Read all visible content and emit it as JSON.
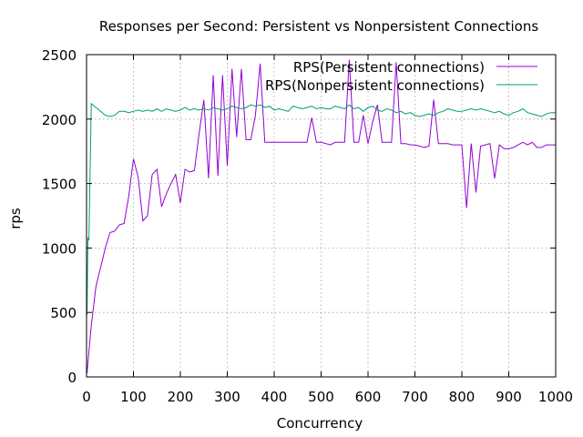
{
  "chart_data": {
    "type": "line",
    "title": "Responses per Second: Persistent vs Nonpersistent Connections",
    "xlabel": "Concurrency",
    "ylabel": "rps",
    "xlim": [
      0,
      1000
    ],
    "ylim": [
      0,
      2500
    ],
    "xticks": [
      0,
      100,
      200,
      300,
      400,
      500,
      600,
      700,
      800,
      900,
      1000
    ],
    "yticks": [
      0,
      500,
      1000,
      1500,
      2000,
      2500
    ],
    "grid": true,
    "legend_position": "top-right",
    "series": [
      {
        "name": "RPS(Persistent connections)",
        "color": "#9400d3",
        "x": [
          1,
          10,
          20,
          30,
          40,
          50,
          60,
          70,
          80,
          90,
          100,
          110,
          120,
          130,
          140,
          150,
          160,
          170,
          180,
          190,
          200,
          210,
          220,
          230,
          240,
          250,
          260,
          270,
          280,
          290,
          300,
          310,
          320,
          330,
          340,
          350,
          360,
          370,
          380,
          390,
          400,
          410,
          420,
          430,
          440,
          450,
          460,
          470,
          480,
          490,
          500,
          510,
          520,
          530,
          540,
          550,
          560,
          570,
          580,
          590,
          600,
          610,
          620,
          630,
          640,
          650,
          660,
          670,
          680,
          690,
          700,
          710,
          720,
          730,
          740,
          750,
          760,
          770,
          780,
          790,
          800,
          810,
          820,
          830,
          840,
          850,
          860,
          870,
          880,
          890,
          900,
          910,
          920,
          930,
          940,
          950,
          960,
          970,
          980,
          990,
          1000
        ],
        "y": [
          30,
          400,
          700,
          850,
          1000,
          1120,
          1130,
          1180,
          1190,
          1400,
          1690,
          1550,
          1210,
          1250,
          1570,
          1610,
          1320,
          1420,
          1500,
          1570,
          1350,
          1610,
          1590,
          1600,
          1890,
          2150,
          1540,
          2340,
          1560,
          2340,
          1640,
          2390,
          1860,
          2390,
          1840,
          1840,
          2030,
          2430,
          1820,
          1820,
          1820,
          1820,
          1820,
          1820,
          1820,
          1820,
          1820,
          1820,
          2010,
          1820,
          1820,
          1810,
          1800,
          1820,
          1820,
          1820,
          2460,
          1820,
          1820,
          2030,
          1810,
          1980,
          2110,
          1820,
          1820,
          1820,
          2440,
          1810,
          1810,
          1800,
          1800,
          1790,
          1780,
          1790,
          2150,
          1810,
          1810,
          1810,
          1800,
          1800,
          1800,
          1310,
          1810,
          1430,
          1790,
          1800,
          1810,
          1540,
          1800,
          1770,
          1770,
          1780,
          1800,
          1820,
          1800,
          1820,
          1780,
          1780,
          1800,
          1800,
          1800
        ]
      },
      {
        "name": "RPS(Nonpersistent connections)",
        "color": "#009e73",
        "x": [
          1,
          3,
          5,
          10,
          20,
          30,
          40,
          50,
          60,
          70,
          80,
          90,
          100,
          110,
          120,
          130,
          140,
          150,
          160,
          170,
          180,
          190,
          200,
          210,
          220,
          230,
          240,
          250,
          260,
          270,
          280,
          290,
          300,
          310,
          320,
          330,
          340,
          350,
          360,
          370,
          380,
          390,
          400,
          410,
          420,
          430,
          440,
          450,
          460,
          470,
          480,
          490,
          500,
          510,
          520,
          530,
          540,
          550,
          560,
          570,
          580,
          590,
          600,
          610,
          620,
          630,
          640,
          650,
          660,
          670,
          680,
          690,
          700,
          710,
          720,
          730,
          740,
          750,
          760,
          770,
          780,
          790,
          800,
          810,
          820,
          830,
          840,
          850,
          860,
          870,
          880,
          890,
          900,
          910,
          920,
          930,
          940,
          950,
          960,
          970,
          980,
          990,
          1000
        ],
        "y": [
          480,
          1080,
          1060,
          2120,
          2090,
          2060,
          2030,
          2020,
          2030,
          2060,
          2060,
          2050,
          2060,
          2070,
          2060,
          2070,
          2060,
          2080,
          2060,
          2080,
          2070,
          2060,
          2070,
          2090,
          2070,
          2080,
          2070,
          2080,
          2070,
          2090,
          2080,
          2070,
          2080,
          2100,
          2090,
          2080,
          2090,
          2110,
          2100,
          2110,
          2090,
          2100,
          2070,
          2080,
          2070,
          2060,
          2100,
          2090,
          2080,
          2090,
          2100,
          2080,
          2090,
          2080,
          2080,
          2100,
          2090,
          2080,
          2110,
          2080,
          2090,
          2060,
          2090,
          2100,
          2070,
          2060,
          2080,
          2070,
          2050,
          2060,
          2040,
          2050,
          2030,
          2020,
          2030,
          2040,
          2030,
          2050,
          2060,
          2080,
          2070,
          2060,
          2060,
          2070,
          2080,
          2070,
          2080,
          2070,
          2060,
          2050,
          2060,
          2040,
          2030,
          2050,
          2060,
          2080,
          2050,
          2040,
          2030,
          2020,
          2040,
          2050,
          2050
        ]
      }
    ]
  }
}
